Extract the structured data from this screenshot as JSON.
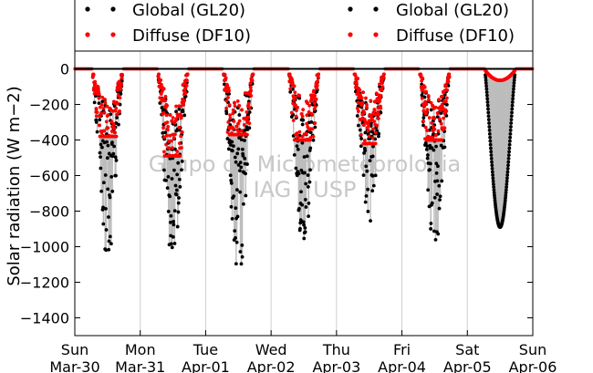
{
  "chart_data": {
    "type": "scatter",
    "title": "",
    "ylabel": "Solar radiation (W m−2)",
    "ylim": [
      -1500,
      100
    ],
    "yticks": [
      0,
      -200,
      -400,
      -600,
      -800,
      -1000,
      -1200,
      -1400
    ],
    "xlim": [
      "2014-03-30",
      "2014-04-06"
    ],
    "xticks": [
      {
        "x": "2014-03-30",
        "day": "Sun",
        "date": "Mar-30"
      },
      {
        "x": "2014-03-31",
        "day": "Mon",
        "date": "Mar-31"
      },
      {
        "x": "2014-04-01",
        "day": "Tue",
        "date": "Apr-01"
      },
      {
        "x": "2014-04-02",
        "day": "Wed",
        "date": "Apr-02"
      },
      {
        "x": "2014-04-03",
        "day": "Thu",
        "date": "Apr-03"
      },
      {
        "x": "2014-04-04",
        "day": "Fri",
        "date": "Apr-04"
      },
      {
        "x": "2014-04-05",
        "day": "Sat",
        "date": "Apr-05"
      },
      {
        "x": "2014-04-06",
        "day": "Sun",
        "date": "Apr-06"
      }
    ],
    "grid": "vertical",
    "legend": "top",
    "watermark": [
      "Grupo de Micrometeorologia",
      "IAG - USP"
    ],
    "series": [
      {
        "name": "Global (GL20)",
        "color": "#000000",
        "minima_by_day": [
          {
            "day": "Mar-30",
            "min": -1020
          },
          {
            "day": "Mar-31",
            "min": -1040
          },
          {
            "day": "Apr-01",
            "min": -1100
          },
          {
            "day": "Apr-02",
            "min": -960
          },
          {
            "day": "Apr-03",
            "min": -870
          },
          {
            "day": "Apr-04",
            "min": -970
          },
          {
            "day": "Apr-05",
            "min": -890
          }
        ]
      },
      {
        "name": "Diffuse (DF10)",
        "color": "#ff0000",
        "minima_by_day": [
          {
            "day": "Mar-30",
            "min": -380
          },
          {
            "day": "Mar-31",
            "min": -490
          },
          {
            "day": "Apr-01",
            "min": -370
          },
          {
            "day": "Apr-02",
            "min": -400
          },
          {
            "day": "Apr-03",
            "min": -420
          },
          {
            "day": "Apr-04",
            "min": -400
          },
          {
            "day": "Apr-05",
            "min": -65
          }
        ]
      }
    ]
  }
}
